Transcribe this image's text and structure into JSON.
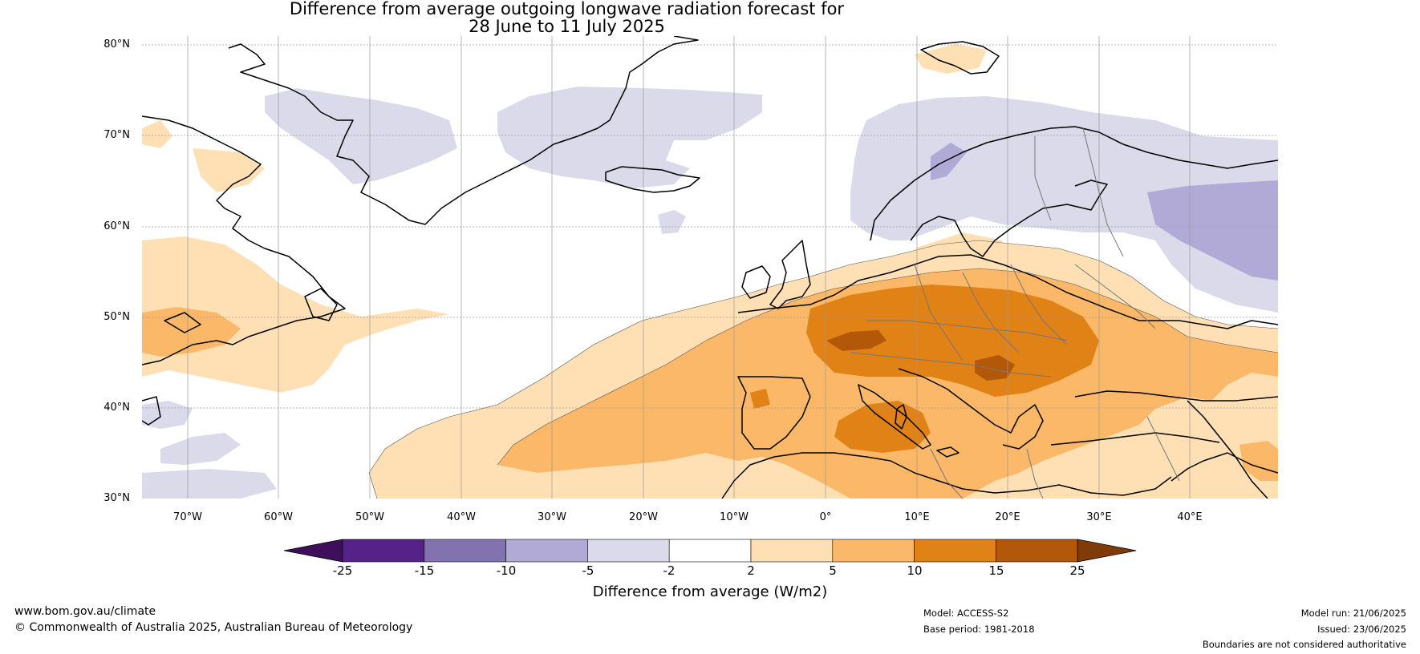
{
  "title": {
    "line1": "Difference from average outgoing longwave radiation forecast for",
    "line2": "28 June to 11 July 2025"
  },
  "lat_labels": [
    "80°N",
    "70°N",
    "60°N",
    "50°N",
    "40°N",
    "30°N"
  ],
  "lon_labels": [
    "70°W",
    "60°W",
    "50°W",
    "40°W",
    "30°W",
    "20°W",
    "10°W",
    "0°",
    "10°E",
    "20°E",
    "30°E",
    "40°E"
  ],
  "colorbar": {
    "label": "Difference from average (W/m2)",
    "ticks": [
      "-25",
      "-15",
      "-10",
      "-5",
      "-2",
      "2",
      "5",
      "10",
      "15",
      "25"
    ],
    "colors": [
      "#3f0f5c",
      "#562287",
      "#8273b0",
      "#b1aad6",
      "#dadaea",
      "#ffffff",
      "#fee0b4",
      "#fbb868",
      "#e08216",
      "#b35808",
      "#7f3b08"
    ]
  },
  "footer": {
    "url": "www.bom.gov.au/climate",
    "copyright": "© Commonwealth of Australia 2025, Australian Bureau of Meteorology",
    "model": "Model: ACCESS-S2",
    "base_period": "Base period: 1981-2018",
    "model_run": "Model run: 21/06/2025",
    "issued": "Issued: 23/06/2025",
    "boundaries": "Boundaries are not considered authoritative"
  }
}
